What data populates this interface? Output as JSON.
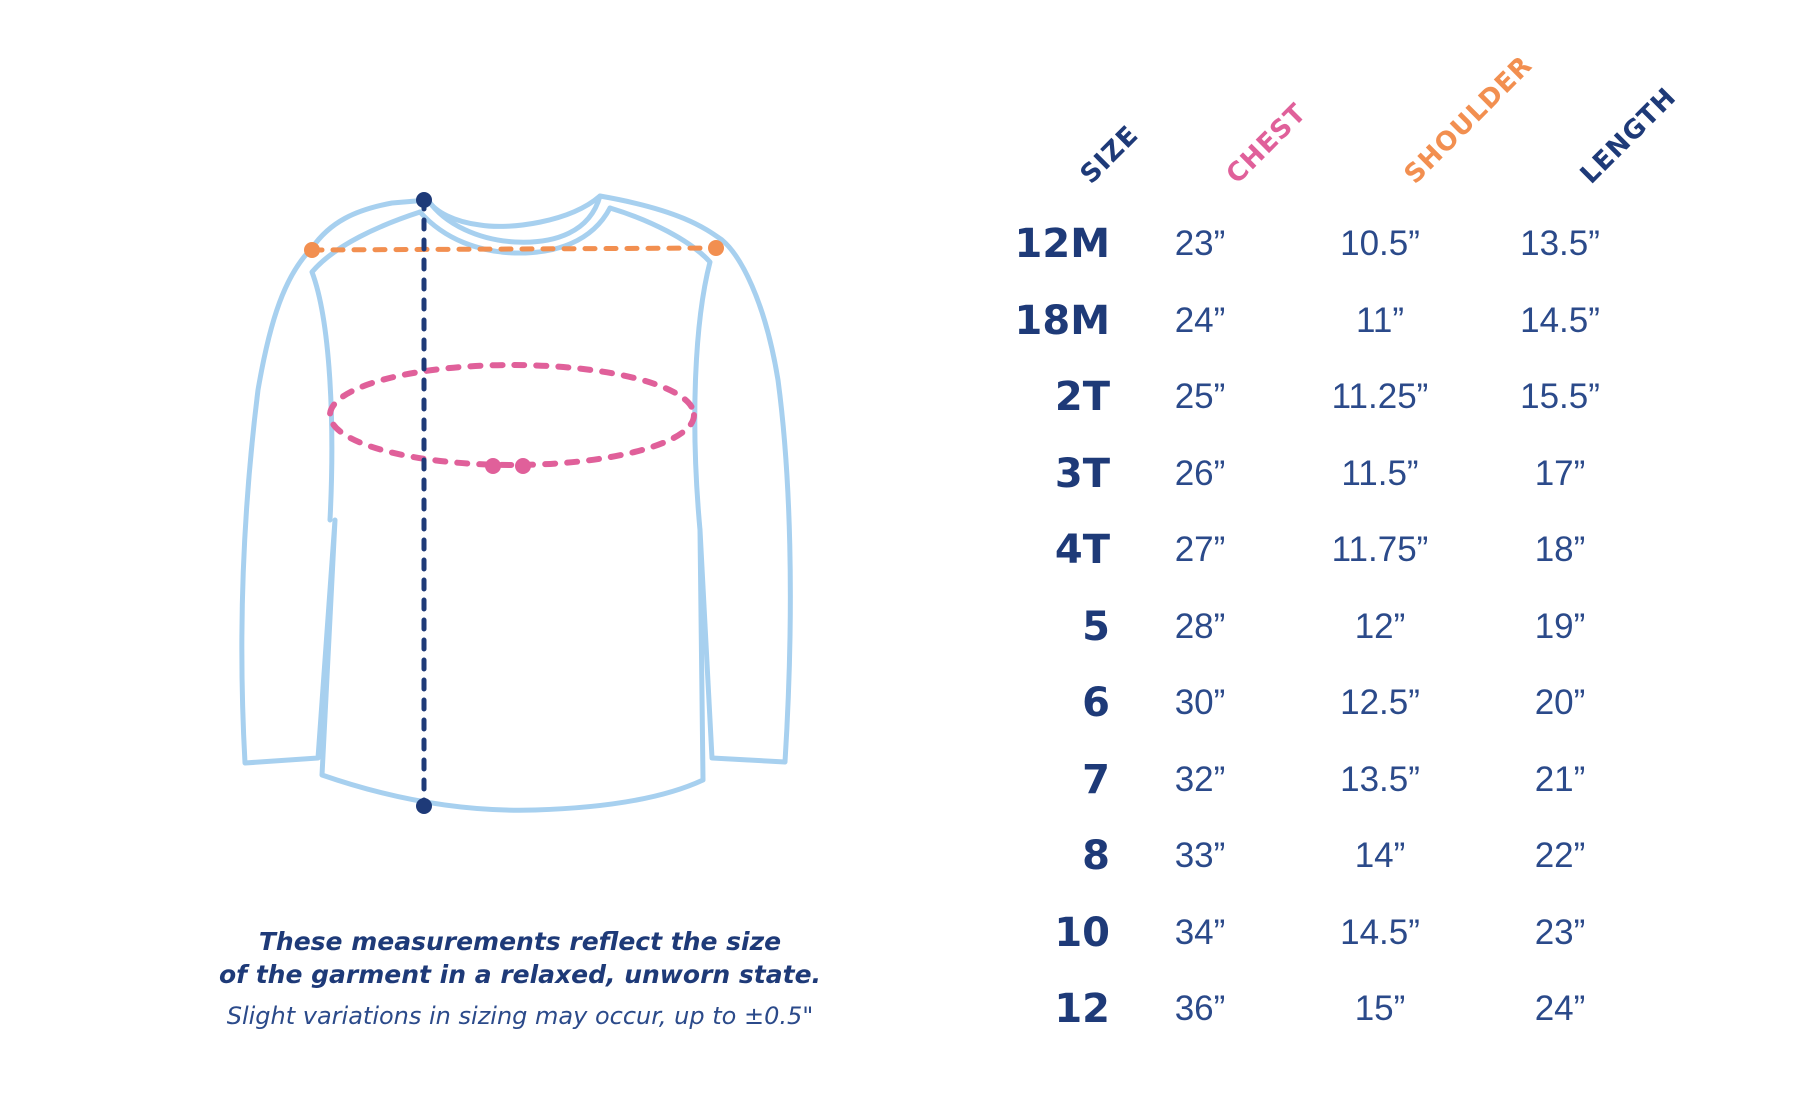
{
  "colors": {
    "navy": "#1e3a78",
    "chest": "#e0609a",
    "shoulder": "#f28f50",
    "length": "#1e3a78",
    "garment_outline": "#a7d0ef"
  },
  "table": {
    "headers": {
      "size": "SIZE",
      "chest": "CHEST",
      "shoulder": "SHOULDER",
      "length": "LENGTH"
    },
    "rows": [
      {
        "size": "12M",
        "chest": "23”",
        "shoulder": "10.5”",
        "length": "13.5”"
      },
      {
        "size": "18M",
        "chest": "24”",
        "shoulder": "11”",
        "length": "14.5”"
      },
      {
        "size": "2T",
        "chest": "25”",
        "shoulder": "11.25”",
        "length": "15.5”"
      },
      {
        "size": "3T",
        "chest": "26”",
        "shoulder": "11.5”",
        "length": "17”"
      },
      {
        "size": "4T",
        "chest": "27”",
        "shoulder": "11.75”",
        "length": "18”"
      },
      {
        "size": "5",
        "chest": "28”",
        "shoulder": "12”",
        "length": "19”"
      },
      {
        "size": "6",
        "chest": "30”",
        "shoulder": "12.5”",
        "length": "20”"
      },
      {
        "size": "7",
        "chest": "32”",
        "shoulder": "13.5”",
        "length": "21”"
      },
      {
        "size": "8",
        "chest": "33”",
        "shoulder": "14”",
        "length": "22”"
      },
      {
        "size": "10",
        "chest": "34”",
        "shoulder": "14.5”",
        "length": "23”"
      },
      {
        "size": "12",
        "chest": "36”",
        "shoulder": "15”",
        "length": "24”"
      }
    ]
  },
  "caption": {
    "line1": "These measurements reflect the size",
    "line2": "of the garment in a relaxed, unworn state.",
    "note": "Slight variations in sizing may occur, up to ±0.5\""
  }
}
